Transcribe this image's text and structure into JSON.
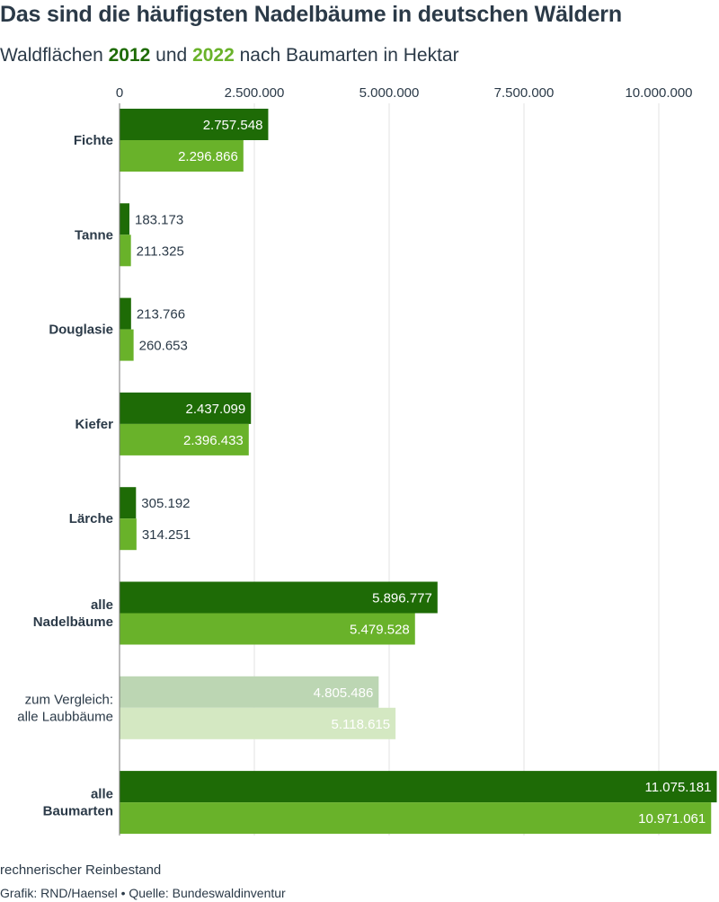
{
  "title": "Das sind die häufigsten Nadelbäume in deutschen Wäldern",
  "subtitle": {
    "prefix": "Waldflächen ",
    "year1": "2012",
    "middle": " und ",
    "year2": "2022",
    "suffix": " nach Baumarten in Hektar"
  },
  "colors": {
    "series_2012": "#1e6b06",
    "series_2022": "#69b22a",
    "comparison_2012": "#bcd6b3",
    "comparison_2022": "#d4e8c2",
    "gridline": "#e3e3e3",
    "axis": "#7a7a7a",
    "text": "#2b3a48"
  },
  "chart_data": {
    "type": "bar",
    "orientation": "horizontal",
    "title": "Das sind die häufigsten Nadelbäume in deutschen Wäldern",
    "subtitle": "Waldflächen 2012 und 2022 nach Baumarten in Hektar",
    "xlim": [
      0,
      11000000
    ],
    "x_ticks": [
      0,
      2500000,
      5000000,
      7500000,
      10000000
    ],
    "x_tick_labels": [
      "0",
      "2.500.000",
      "5.000.000",
      "7.500.000",
      "10.000.000"
    ],
    "grid": true,
    "categories": [
      {
        "label": [
          "Fichte"
        ],
        "bold": true,
        "muted": false
      },
      {
        "label": [
          "Tanne"
        ],
        "bold": true,
        "muted": false
      },
      {
        "label": [
          "Douglasie"
        ],
        "bold": true,
        "muted": false
      },
      {
        "label": [
          "Kiefer"
        ],
        "bold": true,
        "muted": false
      },
      {
        "label": [
          "Lärche"
        ],
        "bold": true,
        "muted": false
      },
      {
        "label": [
          "alle",
          "Nadelbäume"
        ],
        "bold": true,
        "muted": false
      },
      {
        "label": [
          "zum Vergleich:",
          "alle Laubbäume"
        ],
        "bold": false,
        "muted": true
      },
      {
        "label": [
          "alle",
          "Baumarten"
        ],
        "bold": true,
        "muted": false
      }
    ],
    "series": [
      {
        "name": "2012",
        "values": [
          2757548,
          183173,
          213766,
          2437099,
          305192,
          5896777,
          4805486,
          11075181
        ],
        "labels": [
          "2.757.548",
          "183.173",
          "213.766",
          "2.437.099",
          "305.192",
          "5.896.777",
          "4.805.486",
          "11.075.181"
        ]
      },
      {
        "name": "2022",
        "values": [
          2296866,
          211325,
          260653,
          2396433,
          314251,
          5479528,
          5118615,
          10971061
        ],
        "labels": [
          "2.296.866",
          "211.325",
          "260.653",
          "2.396.433",
          "314.251",
          "5.479.528",
          "5.118.615",
          "10.971.061"
        ]
      }
    ]
  },
  "footer": {
    "note": "rechnerischer Reinbestand",
    "credit": "Grafik: RND/Haensel • Quelle: Bundeswaldinventur"
  }
}
